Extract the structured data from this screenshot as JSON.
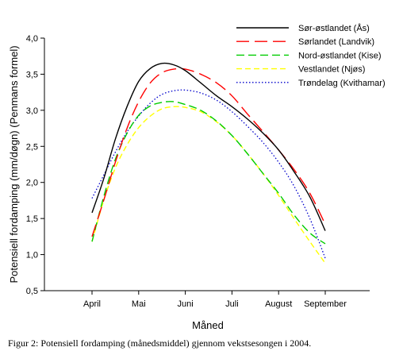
{
  "chart_data": {
    "type": "line",
    "xlabel": "Måned",
    "ylabel": "Potensiell fordamping (mm/døgn) (Penmans formel)",
    "categories": [
      "April",
      "Mai",
      "Juni",
      "Juli",
      "August",
      "September"
    ],
    "ylim": [
      0.5,
      4.0
    ],
    "yticks": [
      "0,5",
      "1,0",
      "1,5",
      "2,0",
      "2,5",
      "3,0",
      "3,5",
      "4,0"
    ],
    "grid": false,
    "legend_position": "top-right",
    "series": [
      {
        "name": "Sør-østlandet (Ås)",
        "color": "#000000",
        "dash": "solid",
        "points": [
          [
            0.0,
            1.58
          ],
          [
            0.25,
            2.05
          ],
          [
            0.5,
            2.6
          ],
          [
            0.75,
            3.05
          ],
          [
            1.0,
            3.4
          ],
          [
            1.25,
            3.58
          ],
          [
            1.5,
            3.65
          ],
          [
            1.75,
            3.63
          ],
          [
            2.0,
            3.55
          ],
          [
            2.33,
            3.38
          ],
          [
            2.67,
            3.2
          ],
          [
            3.0,
            3.05
          ],
          [
            3.33,
            2.88
          ],
          [
            3.67,
            2.68
          ],
          [
            4.0,
            2.45
          ],
          [
            4.33,
            2.15
          ],
          [
            4.67,
            1.8
          ],
          [
            5.0,
            1.33
          ]
        ]
      },
      {
        "name": "Sørlandet (Landvik)",
        "color": "#ff0000",
        "dash": "long-dash",
        "points": [
          [
            0.0,
            1.25
          ],
          [
            0.25,
            1.75
          ],
          [
            0.5,
            2.28
          ],
          [
            0.75,
            2.75
          ],
          [
            1.0,
            3.12
          ],
          [
            1.25,
            3.38
          ],
          [
            1.5,
            3.52
          ],
          [
            1.75,
            3.57
          ],
          [
            2.0,
            3.57
          ],
          [
            2.33,
            3.5
          ],
          [
            2.67,
            3.38
          ],
          [
            3.0,
            3.2
          ],
          [
            3.33,
            2.95
          ],
          [
            3.67,
            2.7
          ],
          [
            4.0,
            2.45
          ],
          [
            4.33,
            2.18
          ],
          [
            4.67,
            1.85
          ],
          [
            5.0,
            1.42
          ]
        ]
      },
      {
        "name": "Nord-østlandet (Kise)",
        "color": "#00cc00",
        "dash": "medium-dash",
        "points": [
          [
            0.0,
            1.18
          ],
          [
            0.25,
            1.8
          ],
          [
            0.5,
            2.32
          ],
          [
            0.75,
            2.68
          ],
          [
            1.0,
            2.93
          ],
          [
            1.25,
            3.06
          ],
          [
            1.5,
            3.11
          ],
          [
            1.75,
            3.12
          ],
          [
            2.0,
            3.08
          ],
          [
            2.33,
            3.0
          ],
          [
            2.67,
            2.85
          ],
          [
            3.0,
            2.65
          ],
          [
            3.33,
            2.4
          ],
          [
            3.67,
            2.12
          ],
          [
            4.0,
            1.85
          ],
          [
            4.33,
            1.55
          ],
          [
            4.67,
            1.3
          ],
          [
            5.0,
            1.15
          ]
        ]
      },
      {
        "name": "Vestlandet (Njøs)",
        "color": "#ffff00",
        "dash": "dash",
        "points": [
          [
            0.0,
            1.18
          ],
          [
            0.25,
            1.75
          ],
          [
            0.5,
            2.2
          ],
          [
            0.75,
            2.52
          ],
          [
            1.0,
            2.76
          ],
          [
            1.25,
            2.92
          ],
          [
            1.5,
            3.02
          ],
          [
            1.75,
            3.05
          ],
          [
            2.0,
            3.04
          ],
          [
            2.33,
            2.98
          ],
          [
            2.67,
            2.84
          ],
          [
            3.0,
            2.65
          ],
          [
            3.33,
            2.4
          ],
          [
            3.67,
            2.12
          ],
          [
            4.0,
            1.82
          ],
          [
            4.33,
            1.5
          ],
          [
            4.67,
            1.18
          ],
          [
            5.0,
            0.88
          ]
        ]
      },
      {
        "name": "Trøndelag (Kvithamar)",
        "color": "#0000cc",
        "dash": "dot",
        "points": [
          [
            0.0,
            1.78
          ],
          [
            0.25,
            2.1
          ],
          [
            0.5,
            2.42
          ],
          [
            0.75,
            2.7
          ],
          [
            1.0,
            2.92
          ],
          [
            1.25,
            3.1
          ],
          [
            1.5,
            3.22
          ],
          [
            1.75,
            3.27
          ],
          [
            2.0,
            3.28
          ],
          [
            2.33,
            3.24
          ],
          [
            2.67,
            3.14
          ],
          [
            3.0,
            2.98
          ],
          [
            3.33,
            2.78
          ],
          [
            3.67,
            2.55
          ],
          [
            4.0,
            2.28
          ],
          [
            4.33,
            1.95
          ],
          [
            4.67,
            1.5
          ],
          [
            5.0,
            0.95
          ]
        ]
      }
    ]
  },
  "caption": "Figur 2: Potensiell fordamping (månedsmiddel) gjennom vekstsesongen i 2004."
}
